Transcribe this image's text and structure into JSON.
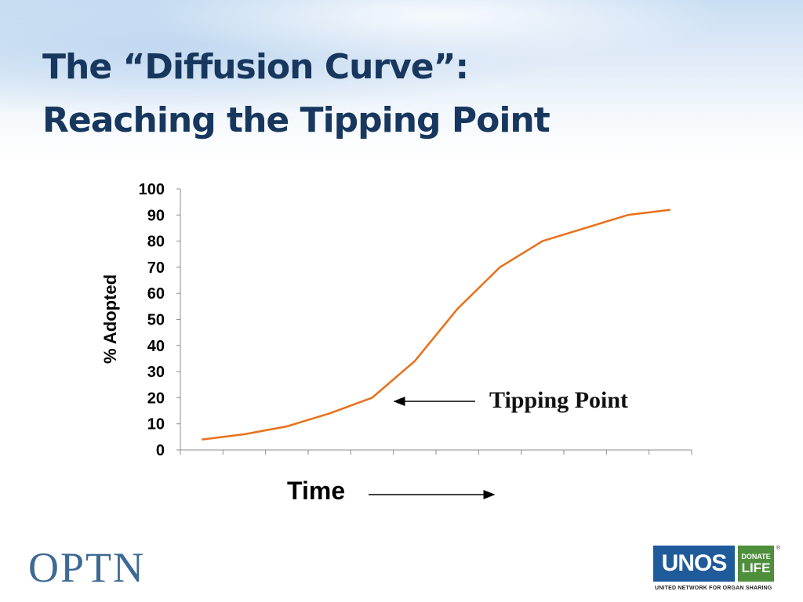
{
  "slide": {
    "title_line1": "The “Diffusion Curve”:",
    "title_line2": "Reaching the Tipping Point",
    "annotation": "Tipping Point",
    "xlabel": "Time",
    "ylabel": "% Adopted"
  },
  "logos": {
    "optn": "OPTN",
    "unos": "UNOS",
    "donate": "DONATE",
    "life": "LIFE",
    "registered": "®",
    "unos_tagline": "UNITED NETWORK FOR ORGAN SHARING"
  },
  "chart_data": {
    "type": "line",
    "title": "",
    "xlabel": "Time",
    "ylabel": "% Adopted",
    "x": [
      1,
      2,
      3,
      4,
      5,
      6,
      7,
      8,
      9,
      10,
      11,
      12
    ],
    "series": [
      {
        "values": [
          4,
          6,
          9,
          14,
          20,
          34,
          54,
          70,
          80,
          85,
          90,
          92
        ],
        "color": "#e8701a"
      }
    ],
    "ylim": [
      0,
      100
    ],
    "yticks": [
      "0",
      "10",
      "20",
      "30",
      "40",
      "50",
      "60",
      "70",
      "80",
      "90",
      "100"
    ],
    "xticks": 13,
    "grid": false,
    "legend": "none"
  }
}
